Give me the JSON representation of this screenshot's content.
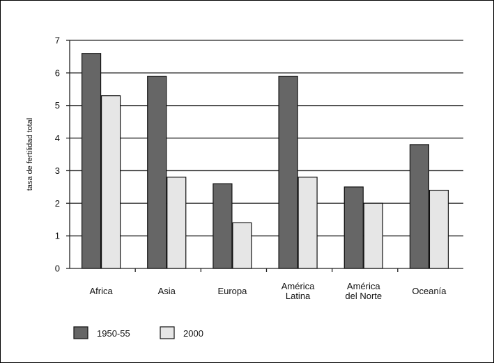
{
  "chart_data": {
    "type": "bar",
    "title": "",
    "xlabel": "",
    "ylabel": "tasa de fertilidad total",
    "ylim": [
      0,
      7
    ],
    "yticks": [
      "0",
      "1",
      "2",
      "3",
      "4",
      "5",
      "6",
      "7"
    ],
    "categories": [
      [
        "Africa"
      ],
      [
        "Asia"
      ],
      [
        "Europa"
      ],
      [
        "América",
        "Latina"
      ],
      [
        "América",
        "del Norte"
      ],
      [
        "Oceanía"
      ]
    ],
    "series": [
      {
        "name": "1950-55",
        "values": [
          6.6,
          5.9,
          2.6,
          5.9,
          2.5,
          3.8
        ],
        "color": "#666666"
      },
      {
        "name": "2000",
        "values": [
          5.3,
          2.8,
          1.4,
          2.8,
          2.0,
          2.4
        ],
        "color": "#e6e6e6"
      }
    ],
    "grid": true,
    "legend_position": "bottom-left"
  }
}
